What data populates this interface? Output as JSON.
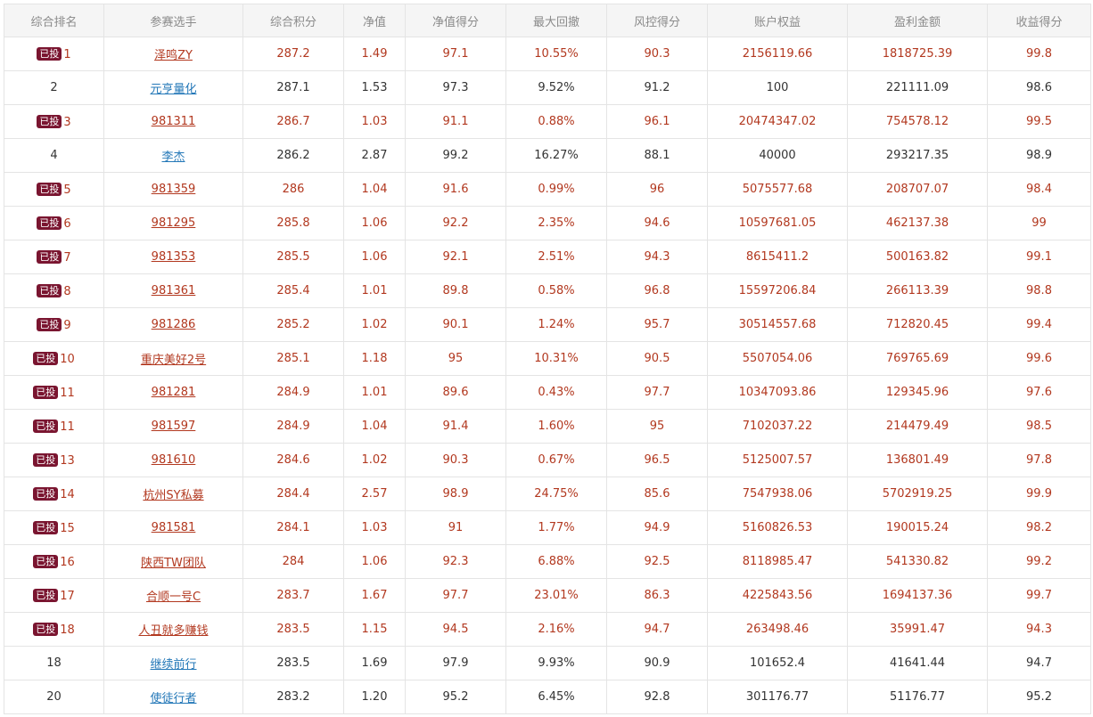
{
  "table": {
    "headers": [
      "综合排名",
      "参赛选手",
      "综合积分",
      "净值",
      "净值得分",
      "最大回撤",
      "风控得分",
      "账户权益",
      "盈利金额",
      "收益得分"
    ],
    "badge_label": "已投",
    "accent_colors": {
      "invested_text": "#b2381f",
      "normal_text": "#333333",
      "link_blue": "#2478b8",
      "badge_bg": "#7a1530"
    },
    "rows": [
      {
        "invested": true,
        "rank": "1",
        "player": "泽鸣ZY",
        "score": "287.2",
        "nav": "1.49",
        "nav_score": "97.1",
        "max_drawdown": "10.55%",
        "risk_score": "90.3",
        "equity": "2156119.66",
        "profit": "1818725.39",
        "return_score": "99.8"
      },
      {
        "invested": false,
        "rank": "2",
        "player": "元亨量化",
        "score": "287.1",
        "nav": "1.53",
        "nav_score": "97.3",
        "max_drawdown": "9.52%",
        "risk_score": "91.2",
        "equity": "100",
        "profit": "221111.09",
        "return_score": "98.6"
      },
      {
        "invested": true,
        "rank": "3",
        "player": "981311",
        "score": "286.7",
        "nav": "1.03",
        "nav_score": "91.1",
        "max_drawdown": "0.88%",
        "risk_score": "96.1",
        "equity": "20474347.02",
        "profit": "754578.12",
        "return_score": "99.5"
      },
      {
        "invested": false,
        "rank": "4",
        "player": "李杰",
        "score": "286.2",
        "nav": "2.87",
        "nav_score": "99.2",
        "max_drawdown": "16.27%",
        "risk_score": "88.1",
        "equity": "40000",
        "profit": "293217.35",
        "return_score": "98.9"
      },
      {
        "invested": true,
        "rank": "5",
        "player": "981359",
        "score": "286",
        "nav": "1.04",
        "nav_score": "91.6",
        "max_drawdown": "0.99%",
        "risk_score": "96",
        "equity": "5075577.68",
        "profit": "208707.07",
        "return_score": "98.4"
      },
      {
        "invested": true,
        "rank": "6",
        "player": "981295",
        "score": "285.8",
        "nav": "1.06",
        "nav_score": "92.2",
        "max_drawdown": "2.35%",
        "risk_score": "94.6",
        "equity": "10597681.05",
        "profit": "462137.38",
        "return_score": "99"
      },
      {
        "invested": true,
        "rank": "7",
        "player": "981353",
        "score": "285.5",
        "nav": "1.06",
        "nav_score": "92.1",
        "max_drawdown": "2.51%",
        "risk_score": "94.3",
        "equity": "8615411.2",
        "profit": "500163.82",
        "return_score": "99.1"
      },
      {
        "invested": true,
        "rank": "8",
        "player": "981361",
        "score": "285.4",
        "nav": "1.01",
        "nav_score": "89.8",
        "max_drawdown": "0.58%",
        "risk_score": "96.8",
        "equity": "15597206.84",
        "profit": "266113.39",
        "return_score": "98.8"
      },
      {
        "invested": true,
        "rank": "9",
        "player": "981286",
        "score": "285.2",
        "nav": "1.02",
        "nav_score": "90.1",
        "max_drawdown": "1.24%",
        "risk_score": "95.7",
        "equity": "30514557.68",
        "profit": "712820.45",
        "return_score": "99.4"
      },
      {
        "invested": true,
        "rank": "10",
        "player": "重庆美好2号",
        "score": "285.1",
        "nav": "1.18",
        "nav_score": "95",
        "max_drawdown": "10.31%",
        "risk_score": "90.5",
        "equity": "5507054.06",
        "profit": "769765.69",
        "return_score": "99.6"
      },
      {
        "invested": true,
        "rank": "11",
        "player": "981281",
        "score": "284.9",
        "nav": "1.01",
        "nav_score": "89.6",
        "max_drawdown": "0.43%",
        "risk_score": "97.7",
        "equity": "10347093.86",
        "profit": "129345.96",
        "return_score": "97.6"
      },
      {
        "invested": true,
        "rank": "11",
        "player": "981597",
        "score": "284.9",
        "nav": "1.04",
        "nav_score": "91.4",
        "max_drawdown": "1.60%",
        "risk_score": "95",
        "equity": "7102037.22",
        "profit": "214479.49",
        "return_score": "98.5"
      },
      {
        "invested": true,
        "rank": "13",
        "player": "981610",
        "score": "284.6",
        "nav": "1.02",
        "nav_score": "90.3",
        "max_drawdown": "0.67%",
        "risk_score": "96.5",
        "equity": "5125007.57",
        "profit": "136801.49",
        "return_score": "97.8"
      },
      {
        "invested": true,
        "rank": "14",
        "player": "杭州SY私募",
        "score": "284.4",
        "nav": "2.57",
        "nav_score": "98.9",
        "max_drawdown": "24.75%",
        "risk_score": "85.6",
        "equity": "7547938.06",
        "profit": "5702919.25",
        "return_score": "99.9"
      },
      {
        "invested": true,
        "rank": "15",
        "player": "981581",
        "score": "284.1",
        "nav": "1.03",
        "nav_score": "91",
        "max_drawdown": "1.77%",
        "risk_score": "94.9",
        "equity": "5160826.53",
        "profit": "190015.24",
        "return_score": "98.2"
      },
      {
        "invested": true,
        "rank": "16",
        "player": "陕西TW团队",
        "score": "284",
        "nav": "1.06",
        "nav_score": "92.3",
        "max_drawdown": "6.88%",
        "risk_score": "92.5",
        "equity": "8118985.47",
        "profit": "541330.82",
        "return_score": "99.2"
      },
      {
        "invested": true,
        "rank": "17",
        "player": "合顺一号C",
        "score": "283.7",
        "nav": "1.67",
        "nav_score": "97.7",
        "max_drawdown": "23.01%",
        "risk_score": "86.3",
        "equity": "4225843.56",
        "profit": "1694137.36",
        "return_score": "99.7"
      },
      {
        "invested": true,
        "rank": "18",
        "player": "人丑就多赚钱",
        "score": "283.5",
        "nav": "1.15",
        "nav_score": "94.5",
        "max_drawdown": "2.16%",
        "risk_score": "94.7",
        "equity": "263498.46",
        "profit": "35991.47",
        "return_score": "94.3"
      },
      {
        "invested": false,
        "rank": "18",
        "player": "继续前行",
        "score": "283.5",
        "nav": "1.69",
        "nav_score": "97.9",
        "max_drawdown": "9.93%",
        "risk_score": "90.9",
        "equity": "101652.4",
        "profit": "41641.44",
        "return_score": "94.7"
      },
      {
        "invested": false,
        "rank": "20",
        "player": "使徒行者",
        "score": "283.2",
        "nav": "1.20",
        "nav_score": "95.2",
        "max_drawdown": "6.45%",
        "risk_score": "92.8",
        "equity": "301176.77",
        "profit": "51176.77",
        "return_score": "95.2"
      }
    ]
  }
}
